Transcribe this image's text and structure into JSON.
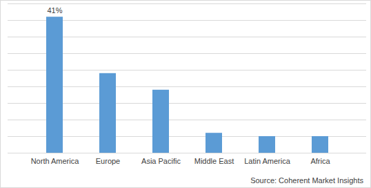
{
  "chart_data": {
    "type": "bar",
    "caption": "Source: Coherent Market Insights",
    "categories": [
      "North America",
      "Europe",
      "Asia Pacific",
      "Middle East",
      "Latin America",
      "Africa"
    ],
    "values": [
      41,
      24,
      19,
      6,
      5,
      5
    ],
    "value_labels": [
      "41%",
      null,
      null,
      null,
      null,
      null
    ],
    "data_labels": true,
    "color": "#5b9bd5",
    "ylim": [
      0,
      45
    ],
    "yticks": [
      0,
      5,
      10,
      15,
      20,
      25,
      30,
      35,
      40,
      45
    ],
    "grid": true,
    "tick_labels": "x"
  }
}
